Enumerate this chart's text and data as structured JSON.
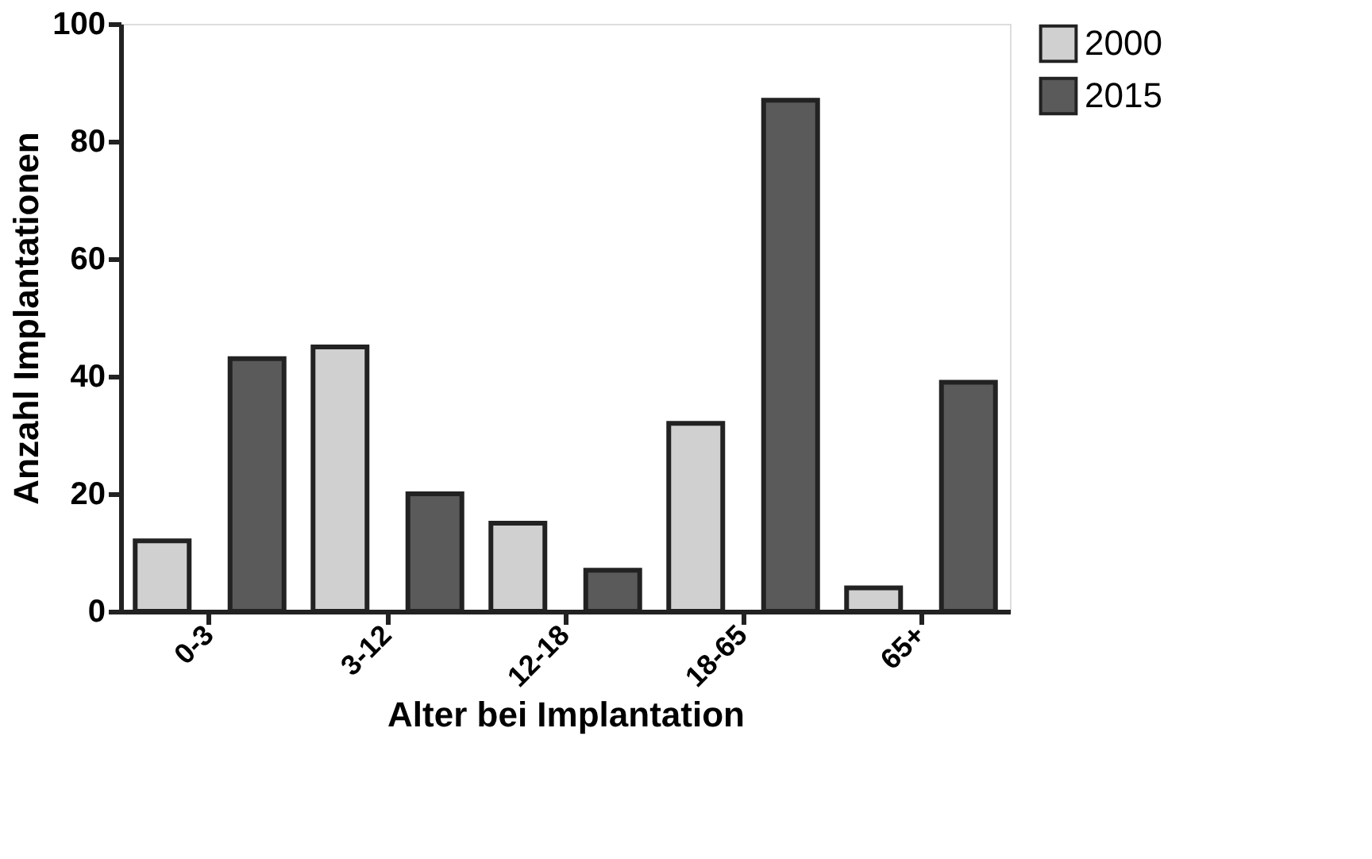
{
  "chart_data": {
    "type": "bar",
    "xlabel": "Alter bei Implantation",
    "ylabel": "Anzahl Implantationen",
    "categories": [
      "0-3",
      "3-12",
      "12-18",
      "18-65",
      "65+"
    ],
    "series": [
      {
        "name": "2000",
        "color": "#d0d0d0",
        "values": [
          12,
          45,
          15,
          32,
          4
        ]
      },
      {
        "name": "2015",
        "color": "#5a5a5a",
        "values": [
          43,
          20,
          7,
          87,
          39
        ]
      }
    ],
    "ylim": [
      0,
      100
    ],
    "yticks": [
      0,
      20,
      40,
      60,
      80,
      100
    ],
    "grid": false,
    "legend": "top right"
  }
}
